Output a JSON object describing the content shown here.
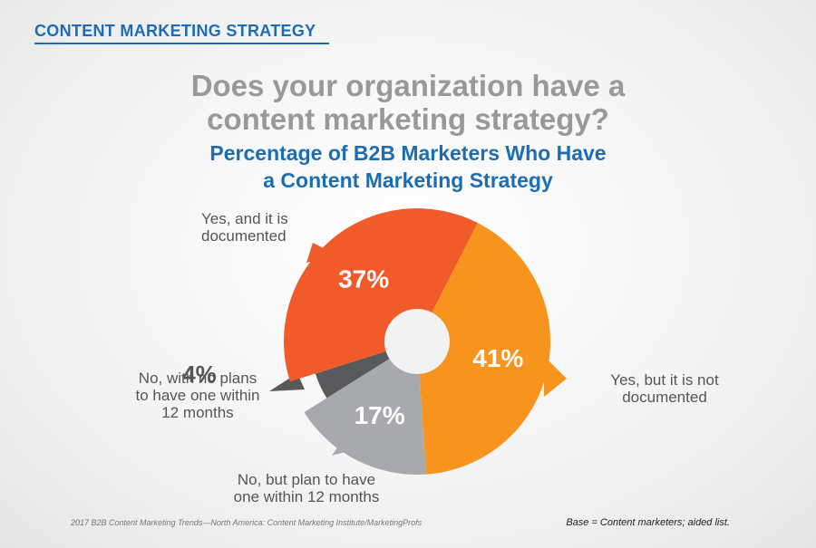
{
  "header": {
    "section_label": "CONTENT MARKETING STRATEGY",
    "question_line1": "Does your organization have a",
    "question_line2": "content marketing strategy?"
  },
  "chart_data": {
    "type": "pie",
    "title_line1": "Percentage of B2B Marketers Who Have",
    "title_line2": "a Content Marketing Strategy",
    "slices": [
      {
        "label": "Yes, but it is not documented",
        "label_lines": [
          "Yes, but it is not",
          "documented"
        ],
        "value": 41,
        "display": "41%",
        "color": "#f7941d"
      },
      {
        "label": "No, but plan to have one within 12 months",
        "label_lines": [
          "No, but plan to have",
          "one within 12 months"
        ],
        "value": 17,
        "display": "17%",
        "color": "#a7a9ac"
      },
      {
        "label": "No, with no plans to have one within 12 months",
        "label_lines": [
          "No, with no plans",
          "to have one within",
          "12 months"
        ],
        "value": 4,
        "display": "4%",
        "color": "#58595b"
      },
      {
        "label": "Yes, and it is documented",
        "label_lines": [
          "Yes, and it is",
          "documented"
        ],
        "value": 37,
        "display": "37%",
        "color": "#f15a29"
      }
    ]
  },
  "footer": {
    "source": "2017 B2B Content Marketing Trends—North America: Content Marketing Institute/MarketingProfs",
    "base": "Base = Content marketers; aided list."
  }
}
